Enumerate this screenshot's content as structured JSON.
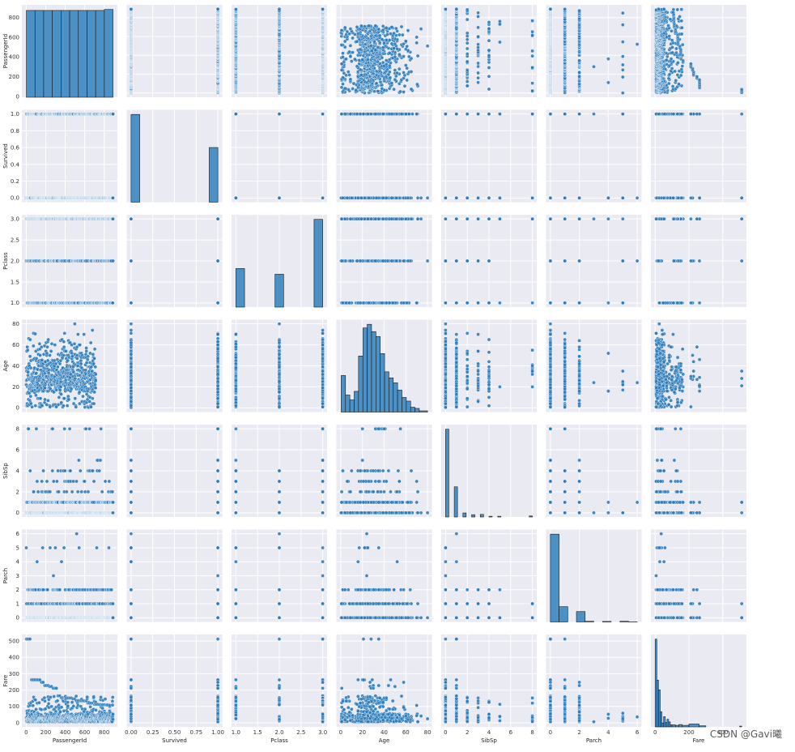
{
  "watermark": "CSDN @Gavi曦",
  "chart_data": {
    "type": "pairplot",
    "variables": [
      "PassengerId",
      "Survived",
      "Pclass",
      "Age",
      "SibSp",
      "Parch",
      "Fare"
    ],
    "point_color": "#2b7bba",
    "hist_color": "#4c91c6",
    "panel_bg": "#eaeaf2",
    "grid": true,
    "axes": {
      "PassengerId": {
        "lim": [
          -45,
          936
        ],
        "ticks": [
          0,
          200,
          400,
          600,
          800
        ],
        "tick_labels": [
          "0",
          "200",
          "400",
          "600",
          "800"
        ]
      },
      "Survived": {
        "lim": [
          -0.05,
          1.05
        ],
        "ticks": [
          0,
          0.25,
          0.5,
          0.75,
          1.0
        ],
        "tick_labels": [
          "0.00",
          "0.25",
          "0.50",
          "0.75",
          "1.00"
        ],
        "y_tick_labels": [
          "0.0",
          "0.2",
          "0.4",
          "0.6",
          "0.8",
          "1.0"
        ],
        "y_ticks": [
          0,
          0.2,
          0.4,
          0.6,
          0.8,
          1.0
        ]
      },
      "Pclass": {
        "lim": [
          0.9,
          3.1
        ],
        "ticks": [
          1,
          1.5,
          2,
          2.5,
          3
        ],
        "tick_labels": [
          "1.0",
          "1.5",
          "2.0",
          "2.5",
          "3.0"
        ]
      },
      "Age": {
        "lim": [
          -4,
          84
        ],
        "ticks": [
          0,
          20,
          40,
          60,
          80
        ],
        "tick_labels": [
          "0",
          "20",
          "40",
          "60",
          "80"
        ]
      },
      "SibSp": {
        "lim": [
          -0.4,
          8.4
        ],
        "ticks": [
          0,
          2,
          4,
          6,
          8
        ],
        "tick_labels": [
          "0",
          "2",
          "4",
          "6",
          "8"
        ]
      },
      "Parch": {
        "lim": [
          -0.3,
          6.3
        ],
        "ticks": [
          0,
          1,
          2,
          3,
          4,
          5,
          6
        ],
        "tick_labels": [
          "0",
          "1",
          "2",
          "3",
          "4",
          "5",
          "6"
        ],
        "x_ticks": [
          0,
          2,
          4,
          6
        ],
        "x_tick_labels": [
          "0",
          "2",
          "4",
          "6"
        ]
      },
      "Fare": {
        "lim": [
          -25,
          540
        ],
        "ticks": [
          0,
          100,
          200,
          300,
          400,
          500
        ],
        "tick_labels": [
          "0",
          "100",
          "200",
          "300",
          "400",
          "500"
        ],
        "x_ticks": [
          0,
          200,
          400
        ],
        "x_tick_labels": [
          "0",
          "200",
          "400"
        ]
      }
    },
    "histograms": {
      "PassengerId": {
        "bins": [
          [
            1,
            90
          ],
          [
            90,
            179
          ],
          [
            179,
            268
          ],
          [
            268,
            357
          ],
          [
            357,
            446
          ],
          [
            446,
            535
          ],
          [
            535,
            624
          ],
          [
            624,
            713
          ],
          [
            713,
            802
          ],
          [
            802,
            891
          ]
        ],
        "counts": [
          89,
          89,
          89,
          89,
          89,
          89,
          89,
          89,
          89,
          90
        ]
      },
      "Survived": {
        "bins": [
          [
            0,
            0.1
          ],
          [
            0.9,
            1.0
          ]
        ],
        "counts": [
          549,
          342
        ]
      },
      "Pclass": {
        "bins": [
          [
            1,
            1.2
          ],
          [
            1.9,
            2.1
          ],
          [
            2.8,
            3.0
          ]
        ],
        "counts": [
          216,
          184,
          491
        ]
      },
      "Age": {
        "bins": [
          [
            0.4,
            4.4
          ],
          [
            4.4,
            8.4
          ],
          [
            8.4,
            12.4
          ],
          [
            12.4,
            16.4
          ],
          [
            16.4,
            20.4
          ],
          [
            20.4,
            24.4
          ],
          [
            24.4,
            28.4
          ],
          [
            28.4,
            32.4
          ],
          [
            32.4,
            36.4
          ],
          [
            36.4,
            40.4
          ],
          [
            40.4,
            44.4
          ],
          [
            44.4,
            48.4
          ],
          [
            48.4,
            52.4
          ],
          [
            52.4,
            56.4
          ],
          [
            56.4,
            60.4
          ],
          [
            60.4,
            64.4
          ],
          [
            64.4,
            68.4
          ],
          [
            68.4,
            72.4
          ],
          [
            72.4,
            80
          ]
        ],
        "counts": [
          30,
          14,
          10,
          17,
          46,
          69,
          72,
          66,
          62,
          48,
          33,
          28,
          24,
          18,
          12,
          9,
          4,
          3,
          1
        ]
      },
      "SibSp": {
        "bins": [
          [
            0,
            0.3
          ],
          [
            0.8,
            1.1
          ],
          [
            1.6,
            1.9
          ],
          [
            2.4,
            2.7
          ],
          [
            3.2,
            3.5
          ],
          [
            4.0,
            4.3
          ],
          [
            4.8,
            5.1
          ],
          [
            7.7,
            8.0
          ]
        ],
        "counts": [
          608,
          209,
          28,
          16,
          18,
          5,
          5,
          7
        ]
      },
      "Parch": {
        "bins": [
          [
            0,
            0.6
          ],
          [
            0.6,
            1.2
          ],
          [
            1.8,
            2.4
          ],
          [
            2.4,
            3.0
          ],
          [
            3.6,
            4.2
          ],
          [
            4.8,
            5.4
          ],
          [
            5.4,
            6.0
          ]
        ],
        "counts": [
          678,
          118,
          80,
          5,
          4,
          5,
          1
        ]
      },
      "Fare": {
        "bins": [
          [
            0,
            10
          ],
          [
            10,
            20
          ],
          [
            20,
            30
          ],
          [
            30,
            40
          ],
          [
            40,
            50
          ],
          [
            50,
            60
          ],
          [
            60,
            70
          ],
          [
            70,
            80
          ],
          [
            80,
            90
          ],
          [
            90,
            100
          ],
          [
            100,
            120
          ],
          [
            120,
            140
          ],
          [
            140,
            160
          ],
          [
            160,
            200
          ],
          [
            200,
            260
          ],
          [
            260,
            300
          ],
          [
            500,
            512
          ]
        ],
        "counts": [
          336,
          179,
          142,
          58,
          15,
          39,
          17,
          29,
          19,
          8,
          8,
          6,
          9,
          6,
          11,
          4,
          3
        ]
      }
    },
    "discrete_values": {
      "Survived": [
        0,
        1
      ],
      "Pclass": [
        1,
        2,
        3
      ],
      "SibSp": [
        0,
        1,
        2,
        3,
        4,
        5,
        8
      ],
      "Parch": [
        0,
        1,
        2,
        3,
        4,
        5,
        6
      ]
    },
    "sample_age": [
      22,
      38,
      26,
      35,
      35,
      54,
      2,
      27,
      14,
      4,
      58,
      20,
      39,
      14,
      55,
      2,
      31,
      35,
      34,
      15,
      28,
      8,
      38,
      19,
      40,
      66,
      28,
      42,
      21,
      18,
      14,
      40,
      27,
      3,
      19,
      18,
      7,
      21,
      49,
      29,
      65,
      21,
      28.5,
      5,
      11,
      22,
      38,
      45,
      4,
      29,
      19,
      17,
      26,
      32,
      16,
      21,
      26,
      32,
      25,
      0.83,
      30,
      22,
      29,
      28,
      17,
      33,
      16,
      23,
      24,
      29,
      20,
      46,
      26,
      59,
      71,
      23,
      34,
      34,
      28,
      21,
      33,
      37,
      28,
      21,
      38,
      47,
      14.5,
      22,
      20,
      17,
      21,
      70.5,
      29,
      24,
      2,
      21,
      32.5,
      32.5,
      54,
      12,
      24,
      45,
      33,
      20,
      47,
      29,
      25,
      23,
      19,
      37,
      16,
      24,
      22,
      24,
      19,
      18,
      19,
      27,
      9,
      36.5,
      42,
      51,
      22,
      55.5,
      40.5,
      51,
      16,
      30,
      44,
      40,
      26,
      17,
      1,
      9,
      45,
      28,
      61,
      4,
      1,
      21,
      56,
      18,
      50,
      30,
      36,
      9,
      1,
      4,
      45,
      40,
      36,
      32,
      19,
      19,
      3,
      44,
      58,
      42,
      24,
      28,
      34,
      45.5,
      18,
      2,
      32,
      26,
      16,
      40,
      24,
      35,
      22,
      30,
      31,
      27,
      42,
      32,
      30,
      16,
      27,
      51,
      38,
      22,
      19,
      20.5,
      18,
      35,
      29,
      59,
      5,
      24,
      44,
      8,
      19,
      33,
      29,
      22,
      30,
      44,
      25,
      24,
      37,
      54,
      29,
      62,
      30,
      41,
      29,
      30,
      35,
      50,
      3,
      52,
      40,
      36,
      16,
      25,
      58,
      35,
      25,
      41,
      37,
      63,
      45,
      7,
      35,
      65,
      28,
      16,
      19,
      33,
      30,
      22,
      42,
      22,
      26,
      19,
      36,
      24,
      24,
      23.5,
      2,
      50,
      19,
      0.92,
      17,
      30,
      30,
      24,
      18,
      26,
      28,
      43,
      26,
      24,
      54,
      31,
      40,
      22,
      27,
      30,
      22,
      36,
      61,
      36,
      31,
      16,
      45.5,
      38,
      16,
      29,
      41,
      45,
      45,
      2,
      24,
      28,
      25,
      36,
      24,
      40,
      3,
      42,
      23,
      15,
      25,
      28,
      22,
      38,
      40,
      29,
      45,
      35,
      30,
      60,
      24,
      25,
      18,
      19,
      22,
      3,
      22,
      27,
      20,
      19,
      42,
      1,
      32,
      35,
      18,
      1,
      36,
      17,
      36,
      21,
      28,
      23,
      24,
      22,
      31,
      46,
      23,
      28,
      39,
      26,
      21,
      28,
      20,
      34,
      51,
      3,
      21,
      33,
      44,
      34,
      18,
      30,
      10,
      21,
      29,
      28,
      18,
      28,
      19,
      32,
      28,
      42,
      17,
      50,
      14,
      21,
      24,
      64,
      31,
      45,
      20,
      25,
      28,
      4,
      13,
      34,
      5,
      52,
      36,
      30,
      49,
      29,
      65,
      50,
      48,
      34,
      47,
      48,
      38,
      56,
      0.75,
      38,
      33,
      23,
      22,
      34,
      29,
      22,
      2,
      9,
      50,
      63,
      25,
      35,
      58,
      30,
      9,
      21,
      55,
      71,
      21,
      54,
      25,
      24,
      17,
      21,
      37,
      16,
      18,
      33,
      28,
      26,
      29,
      36,
      54,
      24,
      47,
      34,
      36,
      32,
      30,
      22,
      44,
      40.5,
      50,
      39,
      23,
      2,
      17,
      30,
      7,
      45,
      30,
      22,
      36,
      9,
      11,
      32,
      50,
      64,
      19,
      33,
      8,
      17,
      27,
      22,
      22,
      62,
      48,
      39,
      36,
      40,
      28,
      24,
      19,
      29,
      32,
      62,
      53,
      36,
      16,
      19,
      34,
      39,
      32,
      25,
      39,
      54,
      36,
      18,
      47,
      60,
      22,
      35,
      52,
      47,
      37,
      36,
      49,
      49,
      24,
      44,
      35,
      36,
      30,
      27,
      22,
      40,
      39,
      35,
      24,
      34,
      26,
      4,
      26,
      27,
      42,
      20,
      21,
      21,
      61,
      57,
      21,
      26,
      80,
      51,
      32,
      9,
      28,
      32,
      31,
      41,
      20,
      24,
      2,
      0.75,
      48,
      19,
      56,
      23,
      18,
      21,
      18,
      24,
      32,
      23,
      58,
      50,
      40,
      47,
      36,
      20,
      32,
      25,
      43,
      40,
      31,
      70,
      31,
      18,
      24.5,
      18,
      43,
      36,
      27,
      20,
      14,
      60,
      25,
      14,
      19,
      18,
      15,
      31,
      4,
      25,
      60,
      52,
      44,
      49,
      42,
      18,
      35,
      18,
      25,
      26,
      39,
      45,
      42,
      22,
      24,
      48,
      29,
      52,
      19,
      38,
      27,
      33,
      6,
      17,
      34,
      50,
      27,
      20,
      30,
      25,
      25,
      29,
      11,
      23,
      23,
      28.5,
      48,
      35,
      36,
      21,
      24,
      31,
      70,
      16,
      30,
      19,
      31,
      4,
      6,
      33,
      23,
      48,
      0.67,
      28,
      18,
      34,
      33,
      41,
      20,
      36,
      16,
      51,
      30.5,
      32,
      24,
      48,
      57,
      54,
      18,
      5,
      43,
      13,
      17,
      29,
      25,
      25,
      18,
      8,
      1,
      46,
      16,
      25,
      39,
      49,
      31,
      30,
      30,
      34,
      31,
      11,
      0.42,
      27,
      31,
      39,
      18,
      39,
      33,
      26,
      39,
      35,
      6,
      30.5,
      23,
      31,
      43,
      10,
      52,
      27,
      38,
      27,
      2,
      1,
      62,
      15,
      0.83,
      23,
      18,
      39,
      21,
      32,
      20,
      16,
      30,
      34.5,
      17,
      42,
      35,
      28,
      4,
      74,
      9,
      16,
      44,
      18,
      45,
      51,
      24,
      41,
      21,
      48,
      24,
      42,
      27,
      31,
      4,
      26,
      47,
      33,
      47,
      28,
      15,
      20,
      19,
      56,
      25,
      33,
      22,
      28,
      25,
      39,
      27,
      19,
      26,
      32
    ],
    "fare_outliers": [
      512.33,
      512.33,
      512.33,
      263,
      263,
      263,
      263,
      262.38,
      262.38,
      247.52,
      247.52,
      227.53,
      227.53,
      227.53,
      221.78,
      221.78,
      211.5,
      211.34,
      211.34,
      164.87,
      164.87,
      153.46,
      153.46,
      153.46,
      151.55,
      151.55,
      151.55,
      151.55,
      146.52,
      146.52,
      135.63,
      135.63,
      135.63,
      134.5,
      134.5,
      133.65,
      133.65,
      120,
      120,
      120,
      120,
      113.27,
      113.27,
      113.27,
      110.88,
      110.88,
      110.88,
      110.88,
      108.9,
      108.9
    ]
  }
}
